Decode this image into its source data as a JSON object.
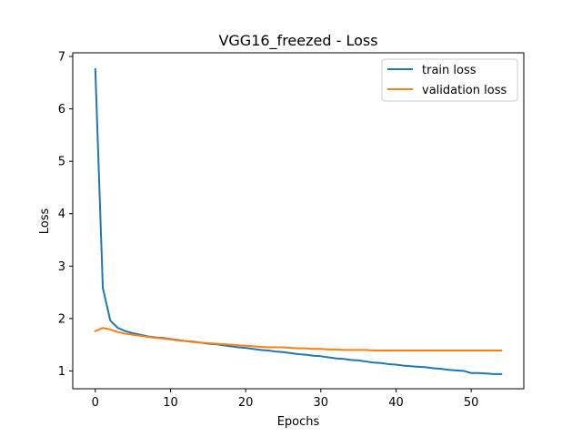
{
  "chart_data": {
    "type": "line",
    "title": "VGG16_freezed - Loss",
    "xlabel": "Epochs",
    "ylabel": "Loss",
    "xlim": [
      -3,
      57
    ],
    "ylim": [
      0.66,
      7.07
    ],
    "xticks": [
      0,
      10,
      20,
      30,
      40,
      50
    ],
    "yticks": [
      1,
      2,
      3,
      4,
      5,
      6,
      7
    ],
    "grid": false,
    "legend_position": "top-right",
    "x": [
      0,
      1,
      2,
      3,
      4,
      5,
      6,
      7,
      8,
      9,
      10,
      11,
      12,
      13,
      14,
      15,
      16,
      17,
      18,
      19,
      20,
      21,
      22,
      23,
      24,
      25,
      26,
      27,
      28,
      29,
      30,
      31,
      32,
      33,
      34,
      35,
      36,
      37,
      38,
      39,
      40,
      41,
      42,
      43,
      44,
      45,
      46,
      47,
      48,
      49,
      50,
      51,
      52,
      53,
      54
    ],
    "series": [
      {
        "name": "train loss",
        "color": "#1f77b4",
        "values": [
          6.76,
          2.58,
          1.96,
          1.82,
          1.76,
          1.72,
          1.69,
          1.66,
          1.64,
          1.63,
          1.61,
          1.59,
          1.57,
          1.56,
          1.54,
          1.52,
          1.51,
          1.49,
          1.47,
          1.45,
          1.44,
          1.42,
          1.4,
          1.39,
          1.37,
          1.36,
          1.34,
          1.32,
          1.31,
          1.29,
          1.28,
          1.26,
          1.24,
          1.23,
          1.21,
          1.2,
          1.18,
          1.16,
          1.15,
          1.13,
          1.12,
          1.1,
          1.09,
          1.08,
          1.07,
          1.05,
          1.04,
          1.02,
          1.01,
          1.0,
          0.96,
          0.96,
          0.95,
          0.94,
          0.94
        ]
      },
      {
        "name": "validation loss",
        "color": "#ff7f0e",
        "values": [
          1.76,
          1.82,
          1.79,
          1.74,
          1.71,
          1.69,
          1.67,
          1.65,
          1.63,
          1.62,
          1.6,
          1.58,
          1.57,
          1.55,
          1.54,
          1.53,
          1.52,
          1.51,
          1.5,
          1.49,
          1.48,
          1.47,
          1.46,
          1.45,
          1.45,
          1.45,
          1.44,
          1.43,
          1.43,
          1.42,
          1.42,
          1.41,
          1.41,
          1.4,
          1.4,
          1.4,
          1.4,
          1.39,
          1.39,
          1.39,
          1.39,
          1.39,
          1.39,
          1.39,
          1.39,
          1.39,
          1.39,
          1.39,
          1.39,
          1.39,
          1.39,
          1.39,
          1.39,
          1.39,
          1.39
        ]
      }
    ]
  }
}
